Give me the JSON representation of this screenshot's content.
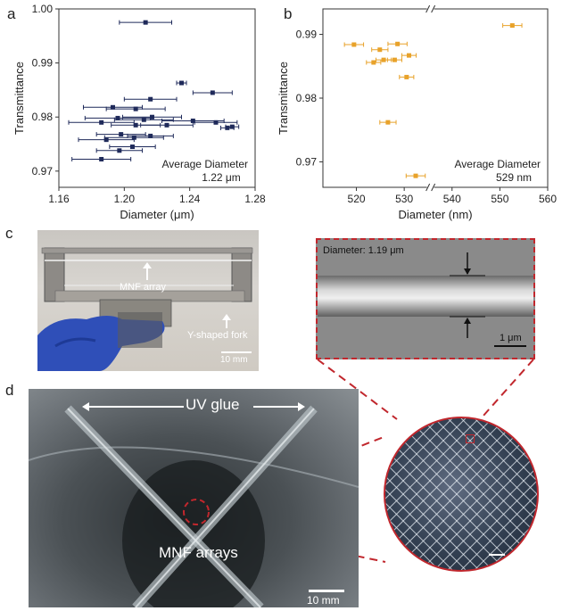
{
  "panel_labels": {
    "a": "a",
    "b": "b",
    "c": "c",
    "d": "d"
  },
  "chart_data": [
    {
      "type": "scatter",
      "xlabel": "Diameter (μm)",
      "ylabel": "Transmittance",
      "xlim": [
        1.16,
        1.28
      ],
      "ylim": [
        0.967,
        1.0
      ],
      "xticks": [
        "1.16",
        "1.20",
        "1.24",
        "1.28"
      ],
      "yticks": [
        "0.97",
        "0.98",
        "0.99",
        "1.00"
      ],
      "xtick_values": [
        1.16,
        1.2,
        1.24,
        1.28
      ],
      "ytick_values": [
        0.97,
        0.98,
        0.99,
        1.0
      ],
      "annotation_line1": "Average Diameter",
      "annotation_line2": "1.22 μm",
      "color": "#1f2a5a",
      "points": [
        {
          "x": 1.213,
          "y": 0.9975,
          "xerr": 0.016
        },
        {
          "x": 1.235,
          "y": 0.9863,
          "xerr": 0.003
        },
        {
          "x": 1.254,
          "y": 0.9845,
          "xerr": 0.012
        },
        {
          "x": 1.216,
          "y": 0.9833,
          "xerr": 0.016
        },
        {
          "x": 1.193,
          "y": 0.9818,
          "xerr": 0.018
        },
        {
          "x": 1.207,
          "y": 0.9815,
          "xerr": 0.018
        },
        {
          "x": 1.196,
          "y": 0.9798,
          "xerr": 0.02
        },
        {
          "x": 1.217,
          "y": 0.98,
          "xerr": 0.018
        },
        {
          "x": 1.212,
          "y": 0.9795,
          "xerr": 0.018
        },
        {
          "x": 1.242,
          "y": 0.9793,
          "xerr": 0.019
        },
        {
          "x": 1.256,
          "y": 0.979,
          "xerr": 0.013
        },
        {
          "x": 1.186,
          "y": 0.979,
          "xerr": 0.02
        },
        {
          "x": 1.207,
          "y": 0.9785,
          "xerr": 0.015
        },
        {
          "x": 1.226,
          "y": 0.9785,
          "xerr": 0.016
        },
        {
          "x": 1.266,
          "y": 0.9782,
          "xerr": 0.004
        },
        {
          "x": 1.263,
          "y": 0.978,
          "xerr": 0.004
        },
        {
          "x": 1.198,
          "y": 0.9768,
          "xerr": 0.015
        },
        {
          "x": 1.216,
          "y": 0.9765,
          "xerr": 0.014
        },
        {
          "x": 1.206,
          "y": 0.9762,
          "xerr": 0.018
        },
        {
          "x": 1.189,
          "y": 0.9758,
          "xerr": 0.017
        },
        {
          "x": 1.205,
          "y": 0.9745,
          "xerr": 0.014
        },
        {
          "x": 1.197,
          "y": 0.9738,
          "xerr": 0.014
        },
        {
          "x": 1.186,
          "y": 0.9722,
          "xerr": 0.018
        }
      ]
    },
    {
      "type": "scatter",
      "xlabel": "Diameter (nm)",
      "ylabel": "Transmittance",
      "xlim": [
        513,
        560
      ],
      "ylim": [
        0.966,
        0.994
      ],
      "xtick_values": [
        520,
        530,
        540,
        550,
        560
      ],
      "xticks": [
        "520",
        "530",
        "540",
        "550",
        "560"
      ],
      "ytick_values": [
        0.97,
        0.98,
        0.99
      ],
      "yticks": [
        "0.97",
        "0.98",
        "0.99"
      ],
      "axis_break_x": 535.5,
      "annotation_line1": "Average Diameter",
      "annotation_line2": "529 nm",
      "color": "#e8a22a",
      "points": [
        {
          "x": 519.5,
          "y": 0.9884,
          "xerr": 2.0
        },
        {
          "x": 528.6,
          "y": 0.9885,
          "xerr": 2.0
        },
        {
          "x": 524.9,
          "y": 0.9876,
          "xerr": 1.7
        },
        {
          "x": 531.0,
          "y": 0.9867,
          "xerr": 1.5
        },
        {
          "x": 525.7,
          "y": 0.986,
          "xerr": 1.6
        },
        {
          "x": 523.6,
          "y": 0.9856,
          "xerr": 1.5
        },
        {
          "x": 528.0,
          "y": 0.986,
          "xerr": 1.5
        },
        {
          "x": 530.5,
          "y": 0.9833,
          "xerr": 1.5
        },
        {
          "x": 526.6,
          "y": 0.9762,
          "xerr": 1.7
        },
        {
          "x": 532.4,
          "y": 0.9678,
          "xerr": 2.0
        },
        {
          "x": 552.6,
          "y": 0.9914,
          "xerr": 2.0
        }
      ]
    }
  ],
  "panel_c": {
    "mnf_label": "MNF array",
    "fork_label": "Y-shaped fork",
    "scale": "10 mm",
    "sem_diameter": "Diameter: 1.19 μm",
    "sem_scale": "1 μm"
  },
  "panel_d": {
    "glue_label": "UV glue",
    "arrays_label": "MNF arrays",
    "scale": "10 mm"
  }
}
